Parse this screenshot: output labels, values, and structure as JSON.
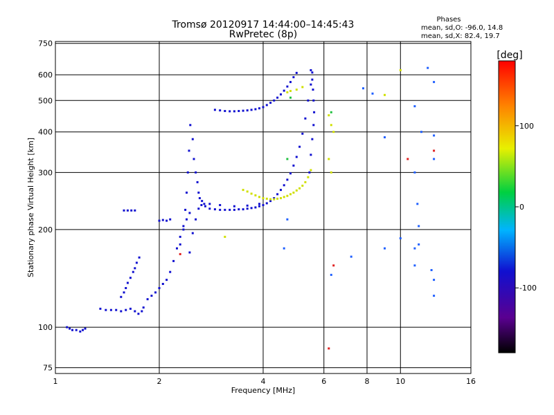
{
  "chart_data": {
    "type": "scatter",
    "title": "Tromsø 20120917 14:44:00–14:45:43",
    "subtitle": "RwPretec (8p)",
    "xlabel": "Frequency [MHz]",
    "ylabel": "Stationary phase Virtual Height [km]",
    "x_scale": "log",
    "y_scale": "log",
    "xlim": [
      1,
      16
    ],
    "ylim": [
      72,
      760
    ],
    "x_ticks": [
      "1",
      "2",
      "4",
      "6",
      "8",
      "10",
      "16"
    ],
    "y_ticks": [
      "75",
      "100",
      "200",
      "300",
      "400",
      "500",
      "600",
      "750"
    ],
    "grid": true,
    "phases_box": {
      "title": "Phases",
      "line_o": "mean, sd,O:  -96.0, 14.8",
      "line_x": "mean, sd,X:  82.4, 19.7"
    },
    "colorbar": {
      "label": "[deg]",
      "range": [
        -180,
        180
      ],
      "ticks": [
        "100",
        "0",
        "-100"
      ],
      "colormap": "rainbow"
    },
    "series": [
      {
        "color": "#1010d0",
        "points": [
          [
            1.08,
            100
          ],
          [
            1.1,
            99
          ],
          [
            1.12,
            98
          ],
          [
            1.15,
            98
          ],
          [
            1.18,
            97
          ],
          [
            1.2,
            98
          ],
          [
            1.22,
            99
          ],
          [
            1.35,
            114
          ],
          [
            1.4,
            113
          ],
          [
            1.45,
            113
          ],
          [
            1.5,
            113
          ],
          [
            1.55,
            112
          ],
          [
            1.6,
            113
          ],
          [
            1.65,
            114
          ],
          [
            1.7,
            112
          ],
          [
            1.74,
            110
          ],
          [
            1.78,
            112
          ],
          [
            1.8,
            115
          ],
          [
            1.55,
            124
          ],
          [
            1.58,
            128
          ],
          [
            1.6,
            132
          ],
          [
            1.62,
            137
          ],
          [
            1.65,
            142
          ],
          [
            1.68,
            148
          ],
          [
            1.7,
            152
          ],
          [
            1.72,
            158
          ],
          [
            1.75,
            164
          ],
          [
            1.58,
            229
          ],
          [
            1.62,
            229
          ],
          [
            1.66,
            229
          ],
          [
            1.7,
            229
          ],
          [
            1.85,
            122
          ],
          [
            1.9,
            125
          ],
          [
            1.95,
            128
          ],
          [
            2.0,
            132
          ],
          [
            2.05,
            136
          ],
          [
            2.1,
            140
          ],
          [
            2.15,
            148
          ],
          [
            2.2,
            160
          ],
          [
            2.25,
            175
          ],
          [
            2.3,
            190
          ],
          [
            2.35,
            205
          ],
          [
            2.4,
            215
          ],
          [
            2.45,
            225
          ],
          [
            2.0,
            213
          ],
          [
            2.05,
            214
          ],
          [
            2.1,
            213
          ],
          [
            2.15,
            215
          ],
          [
            2.3,
            180
          ],
          [
            2.35,
            200
          ],
          [
            2.38,
            230
          ],
          [
            2.4,
            260
          ],
          [
            2.42,
            300
          ],
          [
            2.44,
            350
          ],
          [
            2.46,
            420
          ],
          [
            2.5,
            380
          ],
          [
            2.52,
            330
          ],
          [
            2.55,
            300
          ],
          [
            2.58,
            280
          ],
          [
            2.6,
            260
          ],
          [
            2.62,
            250
          ],
          [
            2.66,
            245
          ],
          [
            2.7,
            240
          ],
          [
            2.45,
            170
          ],
          [
            2.5,
            195
          ],
          [
            2.55,
            215
          ],
          [
            2.6,
            232
          ],
          [
            2.65,
            238
          ],
          [
            2.72,
            236
          ],
          [
            2.8,
            232
          ],
          [
            2.9,
            231
          ],
          [
            3.0,
            230
          ],
          [
            3.1,
            230
          ],
          [
            3.2,
            230
          ],
          [
            3.3,
            230
          ],
          [
            3.4,
            231
          ],
          [
            3.5,
            231
          ],
          [
            3.6,
            232
          ],
          [
            3.7,
            233
          ],
          [
            3.8,
            234
          ],
          [
            3.9,
            236
          ],
          [
            4.0,
            238
          ],
          [
            4.1,
            241
          ],
          [
            4.2,
            245
          ],
          [
            4.3,
            250
          ],
          [
            4.4,
            257
          ],
          [
            4.5,
            265
          ],
          [
            4.6,
            274
          ],
          [
            4.7,
            285
          ],
          [
            4.8,
            298
          ],
          [
            4.9,
            315
          ],
          [
            5.0,
            335
          ],
          [
            5.1,
            360
          ],
          [
            5.2,
            395
          ],
          [
            5.3,
            440
          ],
          [
            5.4,
            500
          ],
          [
            5.5,
            560
          ],
          [
            5.55,
            610
          ],
          [
            2.9,
            468
          ],
          [
            3.0,
            466
          ],
          [
            3.1,
            464
          ],
          [
            3.2,
            463
          ],
          [
            3.3,
            463
          ],
          [
            3.4,
            464
          ],
          [
            3.5,
            465
          ],
          [
            3.6,
            466
          ],
          [
            3.7,
            468
          ],
          [
            3.8,
            470
          ],
          [
            3.9,
            473
          ],
          [
            4.0,
            477
          ],
          [
            4.1,
            484
          ],
          [
            4.2,
            492
          ],
          [
            4.3,
            500
          ],
          [
            4.4,
            510
          ],
          [
            4.5,
            522
          ],
          [
            4.6,
            536
          ],
          [
            4.7,
            552
          ],
          [
            4.8,
            570
          ],
          [
            4.9,
            590
          ],
          [
            5.0,
            608
          ],
          [
            2.8,
            240
          ],
          [
            3.0,
            238
          ],
          [
            3.3,
            236
          ],
          [
            3.6,
            237
          ],
          [
            3.9,
            240
          ],
          [
            5.45,
            300
          ],
          [
            5.5,
            340
          ],
          [
            5.55,
            380
          ],
          [
            5.6,
            420
          ],
          [
            5.62,
            460
          ],
          [
            5.6,
            500
          ],
          [
            5.58,
            540
          ],
          [
            5.55,
            580
          ],
          [
            5.5,
            620
          ]
        ]
      },
      {
        "color": "#d0e000",
        "points": [
          [
            3.5,
            265
          ],
          [
            3.6,
            262
          ],
          [
            3.7,
            258
          ],
          [
            3.8,
            255
          ],
          [
            3.9,
            252
          ],
          [
            4.0,
            250
          ],
          [
            4.1,
            249
          ],
          [
            4.2,
            248
          ],
          [
            4.3,
            248
          ],
          [
            4.4,
            249
          ],
          [
            4.5,
            250
          ],
          [
            4.6,
            252
          ],
          [
            4.7,
            254
          ],
          [
            4.8,
            257
          ],
          [
            4.9,
            260
          ],
          [
            5.0,
            264
          ],
          [
            5.1,
            268
          ],
          [
            5.2,
            273
          ],
          [
            5.3,
            280
          ],
          [
            5.4,
            290
          ],
          [
            5.5,
            305
          ],
          [
            4.7,
            530
          ],
          [
            4.8,
            535
          ],
          [
            5.0,
            540
          ],
          [
            5.2,
            550
          ],
          [
            6.2,
            450
          ],
          [
            6.3,
            420
          ],
          [
            6.4,
            400
          ],
          [
            6.2,
            330
          ],
          [
            6.3,
            300
          ],
          [
            3.1,
            190
          ],
          [
            9.0,
            520
          ],
          [
            10.0,
            620
          ]
        ]
      },
      {
        "color": "#20c040",
        "points": [
          [
            4.8,
            510
          ],
          [
            6.3,
            460
          ],
          [
            4.7,
            330
          ]
        ]
      },
      {
        "color": "#e02020",
        "points": [
          [
            6.2,
            86
          ],
          [
            6.4,
            155
          ],
          [
            12.5,
            350
          ],
          [
            10.5,
            330
          ],
          [
            2.3,
            168
          ]
        ]
      },
      {
        "color": "#2060ff",
        "points": [
          [
            7.8,
            545
          ],
          [
            8.3,
            525
          ],
          [
            9.0,
            385
          ],
          [
            11.0,
            480
          ],
          [
            11.5,
            400
          ],
          [
            12.0,
            630
          ],
          [
            12.5,
            570
          ],
          [
            12.5,
            390
          ],
          [
            12.5,
            330
          ],
          [
            11.0,
            300
          ],
          [
            11.2,
            240
          ],
          [
            11.3,
            205
          ],
          [
            11.3,
            180
          ],
          [
            11.0,
            175
          ],
          [
            11.0,
            155
          ],
          [
            12.3,
            150
          ],
          [
            12.5,
            140
          ],
          [
            12.5,
            125
          ],
          [
            9.0,
            175
          ],
          [
            10.0,
            188
          ],
          [
            7.2,
            165
          ],
          [
            6.3,
            145
          ],
          [
            4.7,
            215
          ],
          [
            4.6,
            175
          ]
        ]
      }
    ]
  }
}
